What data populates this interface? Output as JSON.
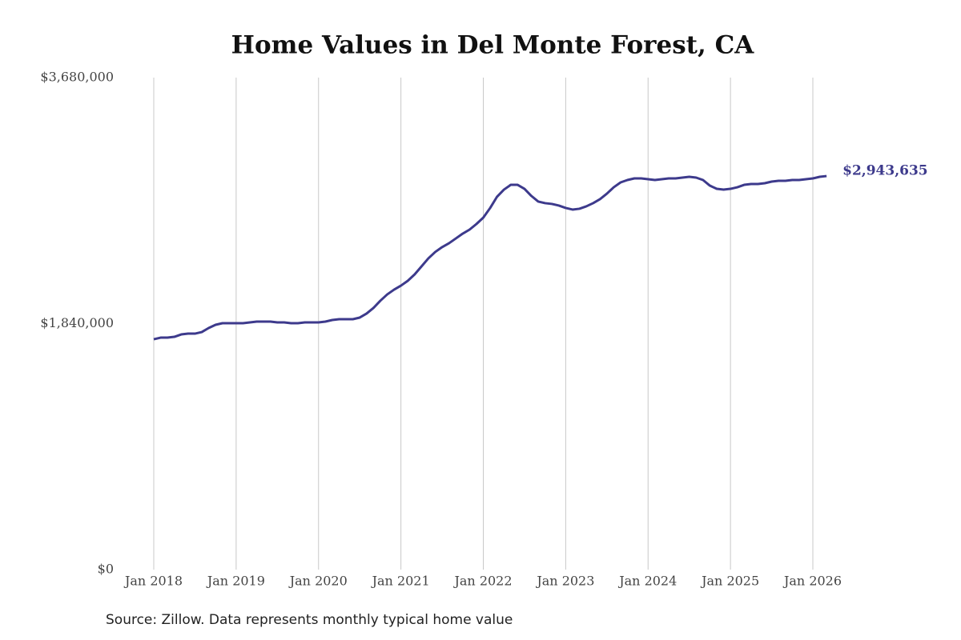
{
  "chart_data": {
    "type": "line",
    "title": "Home Values in Del Monte Forest, CA",
    "source": "Source: Zillow. Data represents monthly typical home value",
    "x": [
      "2018-01",
      "2018-02",
      "2018-03",
      "2018-04",
      "2018-05",
      "2018-06",
      "2018-07",
      "2018-08",
      "2018-09",
      "2018-10",
      "2018-11",
      "2018-12",
      "2019-01",
      "2019-02",
      "2019-03",
      "2019-04",
      "2019-05",
      "2019-06",
      "2019-07",
      "2019-08",
      "2019-09",
      "2019-10",
      "2019-11",
      "2019-12",
      "2020-01",
      "2020-02",
      "2020-03",
      "2020-04",
      "2020-05",
      "2020-06",
      "2020-07",
      "2020-08",
      "2020-09",
      "2020-10",
      "2020-11",
      "2020-12",
      "2021-01",
      "2021-02",
      "2021-03",
      "2021-04",
      "2021-05",
      "2021-06",
      "2021-07",
      "2021-08",
      "2021-09",
      "2021-10",
      "2021-11",
      "2021-12",
      "2022-01",
      "2022-02",
      "2022-03",
      "2022-04",
      "2022-05",
      "2022-06",
      "2022-07",
      "2022-08",
      "2022-09",
      "2022-10",
      "2022-11",
      "2022-12",
      "2023-01",
      "2023-02",
      "2023-03",
      "2023-04",
      "2023-05",
      "2023-06",
      "2023-07",
      "2023-08",
      "2023-09",
      "2023-10",
      "2023-11",
      "2023-12",
      "2024-01",
      "2024-02",
      "2024-03",
      "2024-04",
      "2024-05",
      "2024-06",
      "2024-07",
      "2024-08",
      "2024-09",
      "2024-10",
      "2024-11",
      "2024-12",
      "2025-01",
      "2025-02",
      "2025-03",
      "2025-04",
      "2025-05",
      "2025-06",
      "2025-07",
      "2025-08",
      "2025-09",
      "2025-10",
      "2025-11",
      "2025-12",
      "2026-01",
      "2026-02",
      "2026-03"
    ],
    "series": [
      {
        "name": "Home value",
        "color": "#3d3a8c",
        "values": [
          1723000,
          1735000,
          1735000,
          1741000,
          1759000,
          1765000,
          1765000,
          1777000,
          1807000,
          1831000,
          1843000,
          1843000,
          1843000,
          1843000,
          1849000,
          1855000,
          1855000,
          1855000,
          1849000,
          1849000,
          1843000,
          1843000,
          1849000,
          1849000,
          1849000,
          1855000,
          1867000,
          1873000,
          1873000,
          1873000,
          1885000,
          1915000,
          1957000,
          2011000,
          2058000,
          2094000,
          2124000,
          2160000,
          2208000,
          2268000,
          2328000,
          2376000,
          2412000,
          2441000,
          2477000,
          2513000,
          2543000,
          2585000,
          2633000,
          2705000,
          2789000,
          2842000,
          2878000,
          2878000,
          2848000,
          2795000,
          2753000,
          2741000,
          2735000,
          2723000,
          2705000,
          2693000,
          2699000,
          2717000,
          2741000,
          2771000,
          2812000,
          2860000,
          2896000,
          2914000,
          2926000,
          2926000,
          2920000,
          2914000,
          2920000,
          2926000,
          2926000,
          2932000,
          2938000,
          2932000,
          2914000,
          2872000,
          2848000,
          2842000,
          2848000,
          2860000,
          2878000,
          2884000,
          2884000,
          2890000,
          2902000,
          2908000,
          2908000,
          2914000,
          2914000,
          2920000,
          2926000,
          2938000,
          2943635
        ],
        "value_labels": [
          null,
          null,
          null,
          null,
          null,
          null,
          null,
          null,
          null,
          null,
          null,
          null,
          null,
          null,
          null,
          null,
          null,
          null,
          null,
          null,
          null,
          null,
          null,
          null,
          null,
          null,
          null,
          null,
          null,
          null,
          null,
          null,
          null,
          null,
          null,
          null,
          null,
          null,
          null,
          null,
          null,
          null,
          null,
          null,
          null,
          null,
          null,
          null,
          null,
          null,
          null,
          null,
          null,
          null,
          null,
          null,
          null,
          null,
          null,
          null,
          null,
          null,
          null,
          null,
          null,
          null,
          null,
          null,
          null,
          null,
          null,
          null,
          null,
          null,
          null,
          null,
          null,
          null,
          null,
          null,
          null,
          null,
          null,
          null,
          null,
          null,
          null,
          null,
          null,
          null,
          null,
          null,
          null,
          null,
          null,
          null,
          null,
          null,
          "$2,943,635"
        ]
      }
    ],
    "xticks": [
      {
        "value": "2018-01",
        "label": "Jan 2018"
      },
      {
        "value": "2019-01",
        "label": "Jan 2019"
      },
      {
        "value": "2020-01",
        "label": "Jan 2020"
      },
      {
        "value": "2021-01",
        "label": "Jan 2021"
      },
      {
        "value": "2022-01",
        "label": "Jan 2022"
      },
      {
        "value": "2023-01",
        "label": "Jan 2023"
      },
      {
        "value": "2024-01",
        "label": "Jan 2024"
      },
      {
        "value": "2025-01",
        "label": "Jan 2025"
      },
      {
        "value": "2026-01",
        "label": "Jan 2026"
      }
    ],
    "ylim": [
      0,
      3680000
    ],
    "yticks": [
      {
        "value": 0,
        "label": "$0"
      },
      {
        "value": 1840000,
        "label": "$1,840,000"
      },
      {
        "value": 3680000,
        "label": "$3,680,000"
      }
    ],
    "grid": "x"
  }
}
